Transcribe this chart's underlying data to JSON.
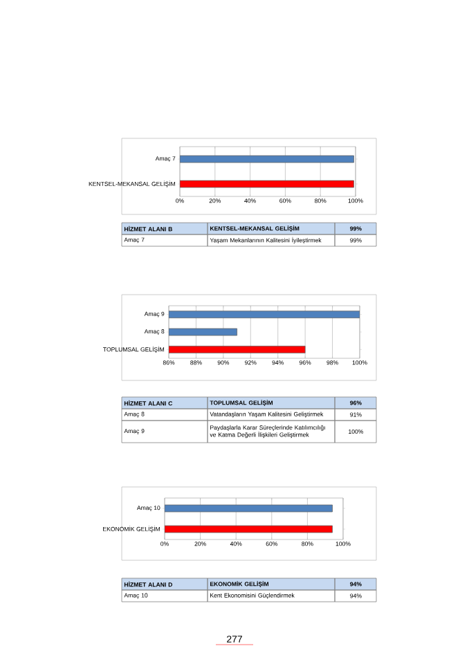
{
  "chart_data": [
    {
      "type": "bar",
      "orientation": "horizontal",
      "categories": [
        "Amaç 7",
        "KENTSEL-MEKANSAL GELİŞİM"
      ],
      "values": [
        99,
        99
      ],
      "colors": [
        "#4f81bd",
        "#ff0000"
      ],
      "xlim": [
        0,
        100
      ],
      "xticks": [
        {
          "value": 0,
          "label": "0%"
        },
        {
          "value": 20,
          "label": "20%"
        },
        {
          "value": 40,
          "label": "40%"
        },
        {
          "value": 60,
          "label": "60%"
        },
        {
          "value": 80,
          "label": "80%"
        },
        {
          "value": 100,
          "label": "100%"
        }
      ],
      "grid": "x",
      "annotations": [
        "HİZMET ALANI B",
        "KENTSEL-MEKANSAL GELİŞİM",
        "99%",
        "Amaç 7",
        "Yaşam Mekanlarının Kalitesini İyileştirmek",
        "99%"
      ]
    },
    {
      "type": "bar",
      "orientation": "horizontal",
      "categories": [
        "Amaç 9",
        "Amaç 8",
        "TOPLUMSAL GELİŞİM"
      ],
      "values": [
        100,
        91,
        96
      ],
      "colors": [
        "#4f81bd",
        "#4f81bd",
        "#ff0000"
      ],
      "xlim": [
        86,
        100
      ],
      "xticks": [
        {
          "value": 86,
          "label": "86%"
        },
        {
          "value": 88,
          "label": "88%"
        },
        {
          "value": 90,
          "label": "90%"
        },
        {
          "value": 92,
          "label": "92%"
        },
        {
          "value": 94,
          "label": "94%"
        },
        {
          "value": 96,
          "label": "96%"
        },
        {
          "value": 98,
          "label": "98%"
        },
        {
          "value": 100,
          "label": "100%"
        }
      ],
      "grid": "x",
      "annotations": [
        "HİZMET ALANI C",
        "TOPLUMSAL GELİŞİM",
        "96%",
        "Amaç 8",
        "Vatandaşların Yaşam Kalitesini Geliştirmek",
        "91%",
        "Amaç 9",
        "Paydaşlarla Karar Süreçlerinde Katılımcılığı ve Katma Değerli İlişkileri Geliştirmek",
        "100%"
      ]
    },
    {
      "type": "bar",
      "orientation": "horizontal",
      "categories": [
        "Amaç 10",
        "EKONOMİK GELİŞİM"
      ],
      "values": [
        94,
        94
      ],
      "colors": [
        "#4f81bd",
        "#ff0000"
      ],
      "xlim": [
        0,
        100
      ],
      "xticks": [
        {
          "value": 0,
          "label": "0%"
        },
        {
          "value": 20,
          "label": "20%"
        },
        {
          "value": 40,
          "label": "40%"
        },
        {
          "value": 60,
          "label": "60%"
        },
        {
          "value": 80,
          "label": "80%"
        },
        {
          "value": 100,
          "label": "100%"
        }
      ],
      "grid": "x",
      "annotations": [
        "HİZMET ALANI D",
        "EKONOMİK GELİŞİM",
        "94%",
        "Amaç 10",
        "Kent Ekonomisini Güçlendirmek",
        "94%",
        "277"
      ]
    }
  ]
}
